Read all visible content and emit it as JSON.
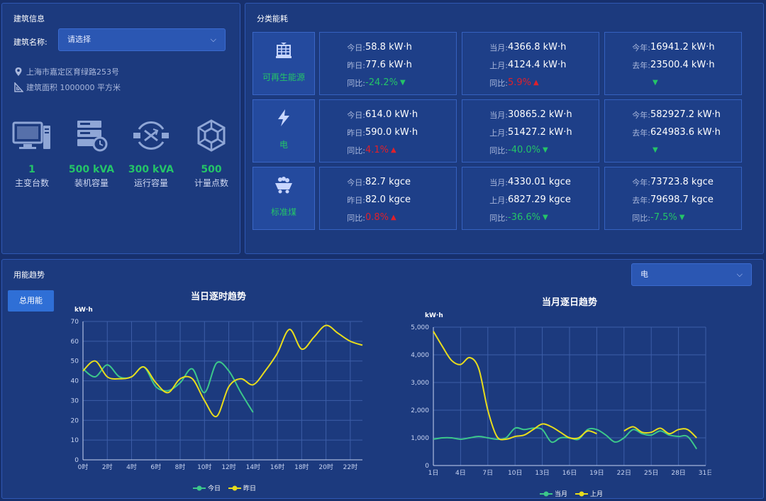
{
  "building": {
    "title": "建筑信息",
    "name_label": "建筑名称:",
    "select_placeholder": "请选择",
    "address": "上海市嘉定区育绿路253号",
    "area": "建筑面积 1000000 平方米",
    "stats": [
      {
        "value": "1",
        "label": "主变台数",
        "icon": "monitor-icon"
      },
      {
        "value": "500 kVA",
        "label": "装机容量",
        "icon": "server-icon"
      },
      {
        "value": "300 kVA",
        "label": "运行容量",
        "icon": "exchange-icon"
      },
      {
        "value": "500",
        "label": "计量点数",
        "icon": "network-icon"
      }
    ]
  },
  "energy": {
    "title": "分类能耗",
    "categories": [
      {
        "name": "可再生能源",
        "icon": "solar-icon",
        "day": {
          "cur_label": "今日:",
          "cur": "58.8 kW·h",
          "prev_label": "昨日:",
          "prev": "77.6 kW·h",
          "yoy_label": "同比:",
          "yoy": "-24.2%",
          "dir": "down"
        },
        "month": {
          "cur_label": "当月:",
          "cur": "4366.8 kW·h",
          "prev_label": "上月:",
          "prev": "4124.4 kW·h",
          "yoy_label": "同比:",
          "yoy": "5.9%",
          "dir": "up"
        },
        "year": {
          "cur_label": "今年:",
          "cur": "16941.2 kW·h",
          "prev_label": "去年:",
          "prev": "23500.4 kW·h",
          "yoy_label": "",
          "yoy": "",
          "dir": "down"
        }
      },
      {
        "name": "电",
        "icon": "lightning-icon",
        "day": {
          "cur_label": "今日:",
          "cur": "614.0 kW·h",
          "prev_label": "昨日:",
          "prev": "590.0 kW·h",
          "yoy_label": "同比:",
          "yoy": "4.1%",
          "dir": "up"
        },
        "month": {
          "cur_label": "当月:",
          "cur": "30865.2 kW·h",
          "prev_label": "上月:",
          "prev": "51427.2 kW·h",
          "yoy_label": "同比:",
          "yoy": "-40.0%",
          "dir": "down"
        },
        "year": {
          "cur_label": "今年:",
          "cur": "582927.2 kW·h",
          "prev_label": "去年:",
          "prev": "624983.6 kW·h",
          "yoy_label": "",
          "yoy": "",
          "dir": "down"
        }
      },
      {
        "name": "标准煤",
        "icon": "coal-cart-icon",
        "day": {
          "cur_label": "今日:",
          "cur": "82.7 kgce",
          "prev_label": "昨日:",
          "prev": "82.0 kgce",
          "yoy_label": "同比:",
          "yoy": "0.8%",
          "dir": "up"
        },
        "month": {
          "cur_label": "当月:",
          "cur": "4330.01 kgce",
          "prev_label": "上月:",
          "prev": "6827.29 kgce",
          "yoy_label": "同比:",
          "yoy": "-36.6%",
          "dir": "down"
        },
        "year": {
          "cur_label": "今年:",
          "cur": "73723.8 kgce",
          "prev_label": "去年:",
          "prev": "79698.7 kgce",
          "yoy_label": "同比:",
          "yoy": "-7.5%",
          "dir": "down"
        }
      }
    ],
    "up_symbol": "▲",
    "down_symbol": "▼"
  },
  "trend": {
    "title": "用能趋势",
    "total_button": "总用能",
    "select_value": "电",
    "colors": {
      "today": "#3cc78a",
      "yesterday": "#e8dc1c",
      "grid": "#3d5ea8",
      "axis": "#c8d4f2"
    }
  },
  "chart_data": [
    {
      "type": "line",
      "title": "当日逐时趋势",
      "ylabel": "kW·h",
      "ylim": [
        0,
        70
      ],
      "yticks": [
        "0",
        "10",
        "20",
        "30",
        "40",
        "50",
        "60",
        "70"
      ],
      "xticks": [
        "0时",
        "2时",
        "4时",
        "6时",
        "8时",
        "10时",
        "12时",
        "14时",
        "16时",
        "18时",
        "20时",
        "22时"
      ],
      "xlim": [
        0,
        23
      ],
      "legend": "bottom",
      "series": [
        {
          "name": "今日",
          "x": [
            0,
            1,
            2,
            3,
            4,
            5,
            6,
            7,
            8,
            9,
            10,
            11,
            12,
            13,
            14
          ],
          "values": [
            46,
            42,
            48,
            42,
            42,
            47,
            37,
            35,
            39,
            46,
            34,
            49,
            45,
            34,
            24
          ]
        },
        {
          "name": "昨日",
          "x": [
            0,
            1,
            2,
            3,
            4,
            5,
            6,
            7,
            8,
            9,
            10,
            11,
            12,
            13,
            14,
            15,
            16,
            17,
            18,
            19,
            20,
            21,
            22,
            23
          ],
          "values": [
            45,
            50,
            42,
            41,
            42,
            47,
            39,
            34,
            41,
            41,
            30,
            22,
            37,
            41,
            38,
            45,
            54,
            66,
            56,
            62,
            68,
            64,
            60,
            58
          ]
        }
      ]
    },
    {
      "type": "line",
      "title": "当月逐日趋势",
      "ylabel": "kW·h",
      "ylim": [
        0,
        5000
      ],
      "yticks": [
        "0",
        "1,000",
        "2,000",
        "3,000",
        "4,000",
        "5,000"
      ],
      "xticks": [
        "1日",
        "4日",
        "7日",
        "10日",
        "13日",
        "16日",
        "19日",
        "22日",
        "25日",
        "28日",
        "31日"
      ],
      "xlim": [
        1,
        31
      ],
      "legend": "bottom",
      "series": [
        {
          "name": "当月",
          "x": [
            1,
            2,
            3,
            4,
            5,
            6,
            7,
            8,
            9,
            10,
            11,
            12,
            13,
            14,
            15,
            16,
            17,
            18,
            19,
            20,
            21,
            22,
            23,
            24,
            25,
            26,
            27,
            28,
            29,
            30
          ],
          "values": [
            950,
            1000,
            1000,
            950,
            1000,
            1050,
            1000,
            950,
            1000,
            1350,
            1300,
            1350,
            1300,
            850,
            1000,
            1000,
            950,
            1300,
            1300,
            1100,
            850,
            1000,
            1300,
            1150,
            1100,
            1250,
            1100,
            1050,
            1050,
            600
          ]
        },
        {
          "name": "上月",
          "x": [
            1,
            2,
            3,
            4,
            5,
            6,
            7,
            8,
            9,
            10,
            11,
            12,
            13,
            14,
            15,
            16,
            17,
            18,
            19,
            20,
            21,
            22,
            23,
            24,
            25,
            26,
            27,
            28,
            29,
            30
          ],
          "values": [
            4850,
            4300,
            3800,
            3650,
            3900,
            3500,
            2000,
            1050,
            950,
            1050,
            1100,
            1300,
            1500,
            1400,
            1200,
            1000,
            1000,
            1250,
            1150,
            null,
            null,
            1250,
            1400,
            1200,
            1200,
            1350,
            1150,
            1300,
            1300,
            1000
          ]
        }
      ]
    }
  ]
}
